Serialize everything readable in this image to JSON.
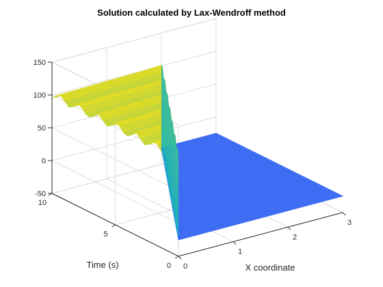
{
  "chart_data": {
    "type": "surface",
    "title": "Solution calculated by Lax-Wendroff method",
    "xlabel": "X coordinate",
    "ylabel": "Time (s)",
    "zlabel": "",
    "xlim": [
      0,
      3
    ],
    "ylim": [
      0,
      10
    ],
    "zlim": [
      -50,
      150
    ],
    "xticks": [
      0,
      1,
      2,
      3
    ],
    "yticks": [
      0,
      5,
      10
    ],
    "zticks": [
      -50,
      0,
      50,
      100,
      150
    ],
    "grid": true,
    "colormap": "parula",
    "colors": {
      "low": "#3e6cf2",
      "mid": "#1fb7b1",
      "high": "#f9e014",
      "mesh_edge": "#19a6cf",
      "axis": "#262626",
      "grid": "#dcdcdc"
    },
    "surface": {
      "low_value": -25,
      "plateau_value": 100,
      "step_x_at_t0": 0.0,
      "step_speed": 0.2,
      "mesh_rows": 30,
      "wave_amplitude": 6,
      "wave_period_s": 1.5,
      "oscillation": "spiky numerical oscillations at the shock front"
    }
  }
}
